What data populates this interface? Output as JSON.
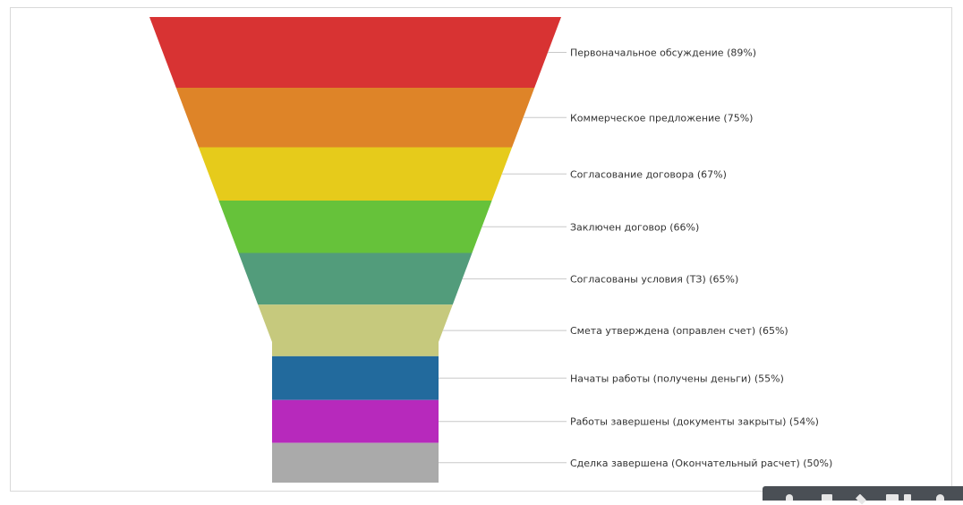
{
  "chart_data": {
    "type": "funnel",
    "title": "",
    "categories": [
      "Первоначальное обсуждение (89%)",
      "Коммерческое предложение (75%)",
      "Согласование договора (67%)",
      "Заключен договор (66%)",
      "Согласованы условия (ТЗ) (65%)",
      "Смета утверждена (оправлен счет) (65%)",
      "Начаты работы (получены деньги) (55%)",
      "Работы завершены (документы закрыты) (54%)",
      "Сделка завершена (Окончательный расчет) (50%)"
    ],
    "values": [
      89,
      75,
      67,
      66,
      65,
      65,
      55,
      54,
      50
    ],
    "colors": [
      "#d83333",
      "#de8428",
      "#e6cb1b",
      "#66c23a",
      "#529c7b",
      "#c6c97d",
      "#226a9d",
      "#b729bc",
      "#aaaaaa"
    ],
    "neck": "straight bottom section",
    "legend": "none"
  },
  "toolbar": {
    "icons": [
      "person-icon",
      "square-icon",
      "diamond-icon",
      "grid-icon",
      "circle-icon"
    ]
  }
}
